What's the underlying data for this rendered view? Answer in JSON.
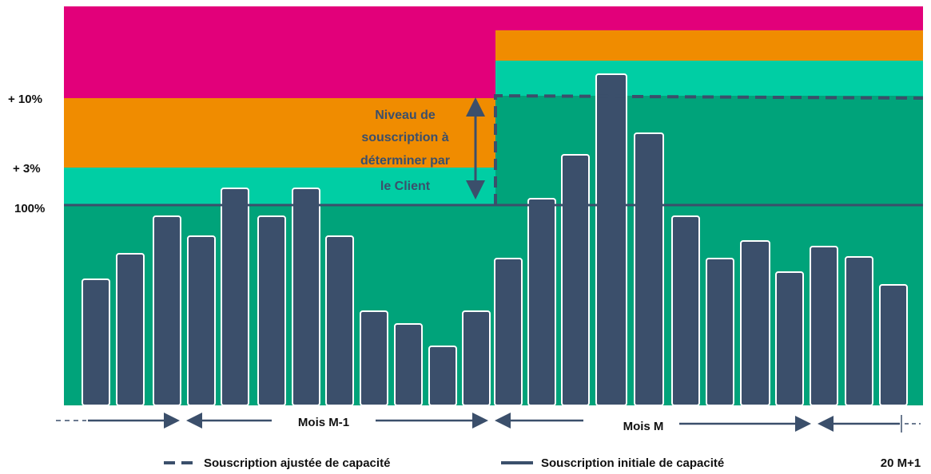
{
  "axis_labels": [
    "+ 10%",
    "+ 3%",
    "100%"
  ],
  "annotation": [
    "Niveau de",
    "souscription à",
    "déterminer par",
    "le Client"
  ],
  "periods": [
    "Mois M-1",
    "Mois M",
    "20 M+1"
  ],
  "legend": [
    "Souscription ajustée de capacité",
    "Souscription initiale de capacité"
  ]
}
